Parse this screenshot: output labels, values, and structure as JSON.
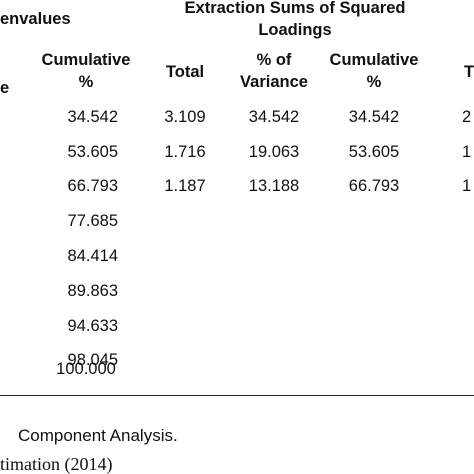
{
  "header": {
    "group1_partial": "envalues",
    "group2_line1": "Extraction Sums of Squared",
    "group2_line2": "Loadings",
    "col_e_partial": "e",
    "col_cumulative_line1": "Cumulative",
    "col_cumulative_line2": "%",
    "col_total": "Total",
    "col_variance_line1": "% of",
    "col_variance_line2": "Variance",
    "col_cumulative2_line1": "Cumulative",
    "col_cumulative2_line2": "%",
    "col_t_partial": "T"
  },
  "rows": [
    {
      "cumulative": "34.542",
      "ext_total": "3.109",
      "ext_variance": "34.542",
      "ext_cumulative": "34.542",
      "rot_partial": "2"
    },
    {
      "cumulative": "53.605",
      "ext_total": "1.716",
      "ext_variance": "19.063",
      "ext_cumulative": "53.605",
      "rot_partial": "1"
    },
    {
      "cumulative": "66.793",
      "ext_total": "1.187",
      "ext_variance": "13.188",
      "ext_cumulative": "66.793",
      "rot_partial": "1"
    },
    {
      "cumulative": "77.685"
    },
    {
      "cumulative": "84.414"
    },
    {
      "cumulative": "89.863"
    },
    {
      "cumulative": "94.633"
    },
    {
      "cumulative": "98.045"
    },
    {
      "cumulative": "100.000"
    }
  ],
  "footnotes": {
    "line1_partial": "Component Analysis.",
    "line2_partial": "timation (2014)"
  }
}
